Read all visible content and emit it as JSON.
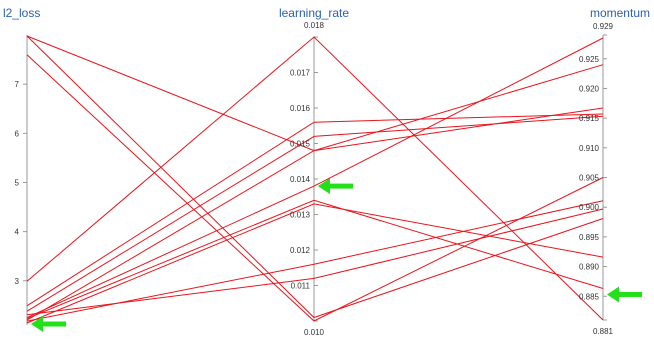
{
  "colors": {
    "line": "#e8141c",
    "axis": "#999999",
    "axis_title": "#2b5fae",
    "tick_text": "#333333",
    "arrow": "#22e01a"
  },
  "chart_data": {
    "type": "parallel-coordinates",
    "axes": [
      {
        "name": "l2_loss",
        "min": 2.1,
        "max": 8.0,
        "ticks": [
          3,
          4,
          5,
          6,
          7
        ],
        "tick_labels": [
          "3",
          "4",
          "5",
          "6",
          "7"
        ]
      },
      {
        "name": "learning_rate",
        "min": 0.01,
        "max": 0.018,
        "ticks": [
          0.01,
          0.011,
          0.012,
          0.013,
          0.014,
          0.015,
          0.016,
          0.017,
          0.018
        ],
        "tick_labels": [
          "0.010",
          "0.011",
          "0.012",
          "0.013",
          "0.014",
          "0.015",
          "0.016",
          "0.017",
          "0.018"
        ]
      },
      {
        "name": "momentum",
        "min": 0.881,
        "max": 0.929,
        "ticks": [
          0.881,
          0.885,
          0.89,
          0.895,
          0.9,
          0.905,
          0.91,
          0.915,
          0.92,
          0.925,
          0.929
        ],
        "tick_labels": [
          "0.881",
          "0.885",
          "0.890",
          "0.895",
          "0.900",
          "0.905",
          "0.910",
          "0.915",
          "0.920",
          "0.925",
          "0.929"
        ]
      }
    ],
    "lines": [
      {
        "l2_loss": 7.98,
        "learning_rate": 0.0148,
        "momentum": 0.9167
      },
      {
        "l2_loss": 7.98,
        "learning_rate": 0.0101,
        "momentum": 0.8981
      },
      {
        "l2_loss": 7.6,
        "learning_rate": 0.01,
        "momentum": 0.905
      },
      {
        "l2_loss": 2.99,
        "learning_rate": 0.018,
        "momentum": 0.881
      },
      {
        "l2_loss": 2.49,
        "learning_rate": 0.0156,
        "momentum": 0.9157
      },
      {
        "l2_loss": 2.38,
        "learning_rate": 0.0152,
        "momentum": 0.9153
      },
      {
        "l2_loss": 2.31,
        "learning_rate": 0.0112,
        "momentum": 0.8997
      },
      {
        "l2_loss": 2.25,
        "learning_rate": 0.0138,
        "momentum": 0.9285
      },
      {
        "l2_loss": 2.23,
        "learning_rate": 0.0134,
        "momentum": 0.8863
      },
      {
        "l2_loss": 2.2,
        "learning_rate": 0.0148,
        "momentum": 0.924
      },
      {
        "l2_loss": 2.18,
        "learning_rate": 0.0116,
        "momentum": 0.9011
      },
      {
        "l2_loss": 2.14,
        "learning_rate": 0.0133,
        "momentum": 0.8916
      }
    ],
    "annotations": [
      {
        "type": "arrow",
        "axis": "l2_loss",
        "value": 2.12,
        "direction": "left"
      },
      {
        "type": "arrow",
        "axis": "learning_rate",
        "value": 0.0138,
        "direction": "left"
      },
      {
        "type": "arrow",
        "axis": "momentum",
        "value": 0.8853,
        "direction": "left"
      }
    ]
  }
}
